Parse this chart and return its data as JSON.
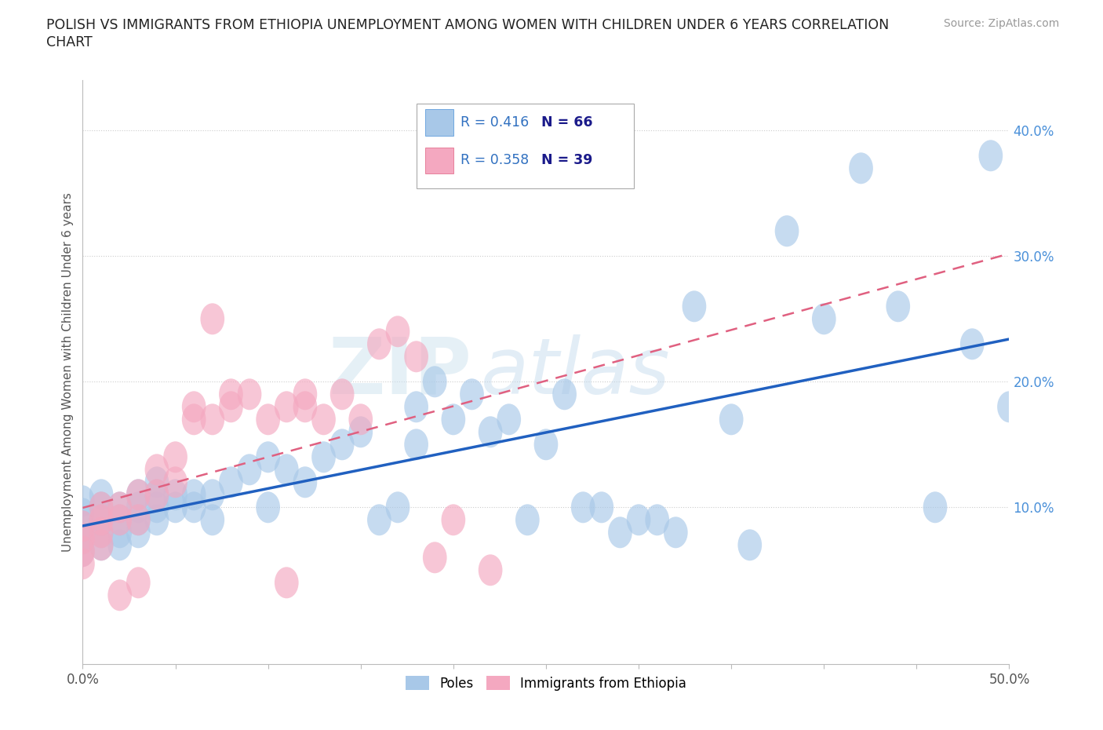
{
  "title_line1": "POLISH VS IMMIGRANTS FROM ETHIOPIA UNEMPLOYMENT AMONG WOMEN WITH CHILDREN UNDER 6 YEARS CORRELATION",
  "title_line2": "CHART",
  "source": "Source: ZipAtlas.com",
  "ylabel": "Unemployment Among Women with Children Under 6 years",
  "xlim": [
    0,
    0.5
  ],
  "ylim": [
    -0.025,
    0.44
  ],
  "ytick_positions": [
    0.1,
    0.2,
    0.3,
    0.4
  ],
  "ytick_labels": [
    "10.0%",
    "20.0%",
    "30.0%",
    "40.0%"
  ],
  "poles_color": "#a8c8e8",
  "ethiopia_color": "#f4a8c0",
  "poles_line_color": "#2060c0",
  "ethiopia_line_color": "#e06080",
  "R_poles": 0.416,
  "N_poles": 66,
  "R_ethiopia": 0.358,
  "N_ethiopia": 39,
  "watermark": "ZIPAtlas",
  "legend_poles": "Poles",
  "legend_ethiopia": "Immigrants from Ethiopia",
  "poles_x": [
    0.0,
    0.0,
    0.0,
    0.0,
    0.0,
    0.01,
    0.01,
    0.01,
    0.01,
    0.01,
    0.02,
    0.02,
    0.02,
    0.02,
    0.03,
    0.03,
    0.03,
    0.03,
    0.04,
    0.04,
    0.04,
    0.04,
    0.05,
    0.05,
    0.06,
    0.06,
    0.07,
    0.07,
    0.08,
    0.09,
    0.1,
    0.1,
    0.11,
    0.12,
    0.13,
    0.14,
    0.15,
    0.16,
    0.17,
    0.18,
    0.18,
    0.19,
    0.2,
    0.21,
    0.22,
    0.23,
    0.24,
    0.25,
    0.26,
    0.27,
    0.28,
    0.29,
    0.3,
    0.31,
    0.32,
    0.33,
    0.35,
    0.36,
    0.38,
    0.4,
    0.42,
    0.44,
    0.46,
    0.48,
    0.49,
    0.5
  ],
  "poles_y": [
    0.065,
    0.075,
    0.085,
    0.095,
    0.105,
    0.07,
    0.08,
    0.09,
    0.1,
    0.11,
    0.07,
    0.08,
    0.09,
    0.1,
    0.08,
    0.09,
    0.1,
    0.11,
    0.09,
    0.1,
    0.11,
    0.12,
    0.1,
    0.11,
    0.1,
    0.11,
    0.09,
    0.11,
    0.12,
    0.13,
    0.14,
    0.1,
    0.13,
    0.12,
    0.14,
    0.15,
    0.16,
    0.09,
    0.1,
    0.18,
    0.15,
    0.2,
    0.17,
    0.19,
    0.16,
    0.17,
    0.09,
    0.15,
    0.19,
    0.1,
    0.1,
    0.08,
    0.09,
    0.09,
    0.08,
    0.26,
    0.17,
    0.07,
    0.32,
    0.25,
    0.37,
    0.26,
    0.1,
    0.23,
    0.38,
    0.18
  ],
  "ethiopia_x": [
    0.0,
    0.0,
    0.0,
    0.0,
    0.01,
    0.01,
    0.01,
    0.01,
    0.02,
    0.02,
    0.02,
    0.03,
    0.03,
    0.03,
    0.04,
    0.04,
    0.05,
    0.05,
    0.06,
    0.06,
    0.07,
    0.07,
    0.08,
    0.08,
    0.09,
    0.1,
    0.11,
    0.11,
    0.12,
    0.12,
    0.13,
    0.14,
    0.15,
    0.16,
    0.17,
    0.18,
    0.19,
    0.2,
    0.22
  ],
  "ethiopia_y": [
    0.055,
    0.065,
    0.075,
    0.085,
    0.07,
    0.08,
    0.09,
    0.1,
    0.09,
    0.1,
    0.03,
    0.11,
    0.09,
    0.04,
    0.11,
    0.13,
    0.12,
    0.14,
    0.17,
    0.18,
    0.17,
    0.25,
    0.18,
    0.19,
    0.19,
    0.17,
    0.18,
    0.04,
    0.18,
    0.19,
    0.17,
    0.19,
    0.17,
    0.23,
    0.24,
    0.22,
    0.06,
    0.09,
    0.05
  ],
  "poles_trend": [
    0.065,
    0.215
  ],
  "ethiopia_trend_x": [
    0.0,
    0.5
  ],
  "ethiopia_trend": [
    0.055,
    0.35
  ]
}
